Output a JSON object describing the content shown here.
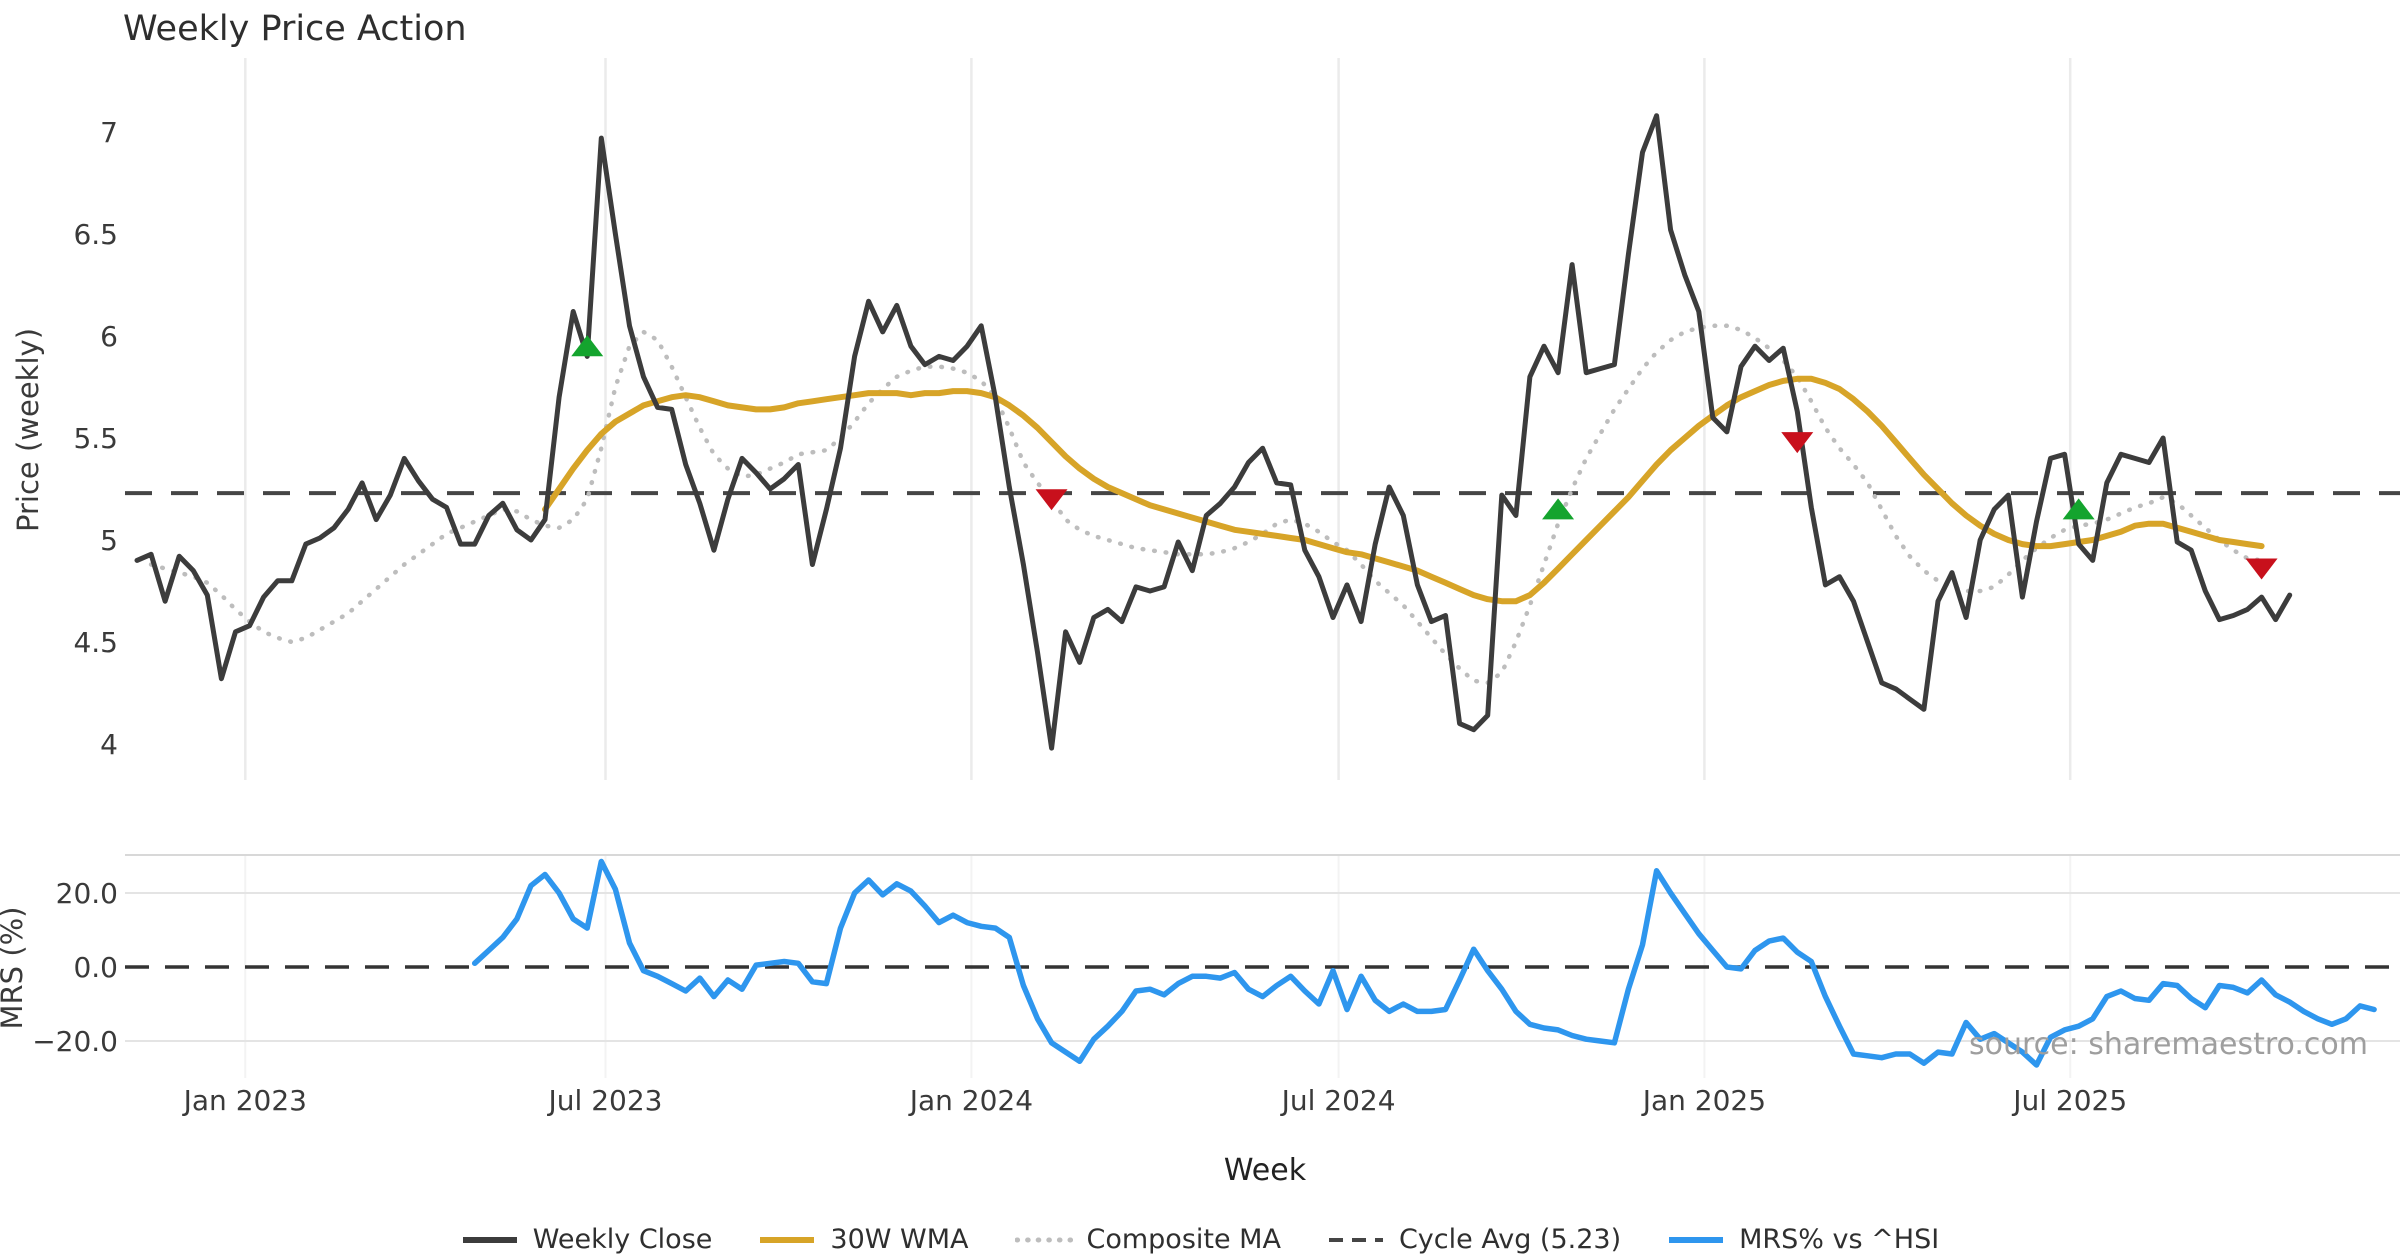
{
  "title": "Weekly Price Action",
  "source_note": "source: sharemaestro.com",
  "colors": {
    "close": "#3c3c3c",
    "wma": "#d7a428",
    "composite": "#bdbdbd",
    "cycle_avg": "#454545",
    "mrs": "#2e96ee",
    "buy_marker": "#14a42e",
    "sell_marker": "#c8101c",
    "grid": "#ebebeb",
    "panel_border": "#d8d8d8",
    "tick_text": "#3a3a3a",
    "source_text": "#9e9e9e"
  },
  "legend": [
    {
      "label": "Weekly Close",
      "color": "#3c3c3c",
      "style": "solid"
    },
    {
      "label": "30W WMA",
      "color": "#d7a428",
      "style": "solid"
    },
    {
      "label": "Composite MA",
      "color": "#bdbdbd",
      "style": "dotted"
    },
    {
      "label": "Cycle Avg (5.23)",
      "color": "#454545",
      "style": "dashed"
    },
    {
      "label": "MRS% vs ^HSI",
      "color": "#2e96ee",
      "style": "solid"
    }
  ],
  "chart_data": {
    "type": "line",
    "x_unit": "week",
    "xlabel": "Week",
    "xticks": [
      {
        "label": "Jan 2023",
        "week": 7.7
      },
      {
        "label": "Jul 2023",
        "week": 33.3
      },
      {
        "label": "Jan 2024",
        "week": 59.3
      },
      {
        "label": "Jul 2024",
        "week": 85.4
      },
      {
        "label": "Jan 2025",
        "week": 111.4
      },
      {
        "label": "Jul 2025",
        "week": 137.4
      }
    ],
    "price_panel": {
      "ylabel": "Price (weekly)",
      "yticks": [
        7,
        6.5,
        6,
        5.5,
        5,
        4.5,
        4
      ],
      "ylim": [
        3.85,
        7.15
      ],
      "cycle_avg": 5.23,
      "series": [
        {
          "name": "Weekly Close",
          "start_week": 0,
          "values": [
            4.9,
            4.93,
            4.7,
            4.92,
            4.85,
            4.73,
            4.32,
            4.55,
            4.58,
            4.72,
            4.8,
            4.8,
            4.98,
            5.01,
            5.06,
            5.15,
            5.28,
            5.1,
            5.22,
            5.4,
            5.29,
            5.2,
            5.16,
            4.98,
            4.98,
            5.12,
            5.18,
            5.05,
            5.0,
            5.1,
            5.7,
            6.12,
            5.9,
            6.97,
            6.5,
            6.05,
            5.8,
            5.65,
            5.64,
            5.37,
            5.18,
            4.95,
            5.2,
            5.4,
            5.33,
            5.25,
            5.3,
            5.37,
            4.88,
            5.15,
            5.45,
            5.9,
            6.17,
            6.02,
            6.15,
            5.95,
            5.86,
            5.9,
            5.88,
            5.95,
            6.05,
            5.7,
            5.26,
            4.88,
            4.45,
            3.98,
            4.55,
            4.4,
            4.62,
            4.66,
            4.6,
            4.77,
            4.75,
            4.77,
            4.99,
            4.85,
            5.12,
            5.18,
            5.26,
            5.38,
            5.45,
            5.28,
            5.27,
            4.95,
            4.82,
            4.62,
            4.78,
            4.6,
            4.98,
            5.26,
            5.12,
            4.78,
            4.6,
            4.63,
            4.1,
            4.07,
            4.14,
            5.22,
            5.12,
            5.8,
            5.95,
            5.82,
            6.35,
            5.82,
            5.84,
            5.86,
            6.4,
            6.9,
            7.08,
            6.52,
            6.3,
            6.12,
            5.6,
            5.53,
            5.85,
            5.95,
            5.88,
            5.94,
            5.63,
            5.16,
            4.78,
            4.82,
            4.7,
            4.5,
            4.3,
            4.27,
            4.22,
            4.17,
            4.7,
            4.84,
            4.62,
            5.0,
            5.15,
            5.22,
            4.72,
            5.09,
            5.4,
            5.42,
            4.98,
            4.9,
            5.28,
            5.42,
            5.4,
            5.38,
            5.5,
            4.99,
            4.95,
            4.75,
            4.61,
            4.63,
            4.66,
            4.72,
            4.61,
            4.73
          ]
        },
        {
          "name": "30W WMA",
          "start_week": 29,
          "values": [
            5.15,
            5.25,
            5.35,
            5.44,
            5.52,
            5.58,
            5.62,
            5.66,
            5.68,
            5.7,
            5.71,
            5.7,
            5.68,
            5.66,
            5.65,
            5.64,
            5.64,
            5.65,
            5.67,
            5.68,
            5.69,
            5.7,
            5.71,
            5.72,
            5.72,
            5.72,
            5.71,
            5.72,
            5.72,
            5.73,
            5.73,
            5.72,
            5.7,
            5.66,
            5.61,
            5.55,
            5.48,
            5.41,
            5.35,
            5.3,
            5.26,
            5.23,
            5.2,
            5.17,
            5.15,
            5.13,
            5.11,
            5.09,
            5.07,
            5.05,
            5.04,
            5.03,
            5.02,
            5.01,
            5.0,
            4.98,
            4.96,
            4.94,
            4.93,
            4.91,
            4.89,
            4.87,
            4.85,
            4.82,
            4.79,
            4.76,
            4.73,
            4.71,
            4.7,
            4.7,
            4.73,
            4.79,
            4.86,
            4.93,
            5.0,
            5.07,
            5.14,
            5.21,
            5.29,
            5.37,
            5.44,
            5.5,
            5.56,
            5.61,
            5.66,
            5.7,
            5.73,
            5.76,
            5.78,
            5.79,
            5.79,
            5.77,
            5.74,
            5.69,
            5.63,
            5.56,
            5.48,
            5.4,
            5.32,
            5.25,
            5.18,
            5.12,
            5.07,
            5.03,
            5.0,
            4.98,
            4.97,
            4.97,
            4.98,
            4.99,
            5.0,
            5.02,
            5.04,
            5.07,
            5.08,
            5.08,
            5.06,
            5.04,
            5.02,
            5.0,
            4.99,
            4.98,
            4.97
          ]
        },
        {
          "name": "Composite MA",
          "start_week": 1,
          "values": [
            4.88,
            4.86,
            4.84,
            4.82,
            4.79,
            4.73,
            4.66,
            4.6,
            4.55,
            4.52,
            4.5,
            4.52,
            4.56,
            4.6,
            4.64,
            4.7,
            4.76,
            4.82,
            4.88,
            4.93,
            4.98,
            5.03,
            5.06,
            5.09,
            5.12,
            5.15,
            5.14,
            5.1,
            5.07,
            5.06,
            5.1,
            5.2,
            5.45,
            5.75,
            5.95,
            6.02,
            5.98,
            5.85,
            5.7,
            5.55,
            5.42,
            5.35,
            5.31,
            5.32,
            5.35,
            5.38,
            5.42,
            5.43,
            5.44,
            5.5,
            5.58,
            5.67,
            5.74,
            5.8,
            5.83,
            5.85,
            5.85,
            5.84,
            5.82,
            5.78,
            5.7,
            5.55,
            5.38,
            5.28,
            5.2,
            5.1,
            5.05,
            5.02,
            5.0,
            4.98,
            4.96,
            4.95,
            4.94,
            4.93,
            4.93,
            4.93,
            4.94,
            4.96,
            4.99,
            5.03,
            5.08,
            5.1,
            5.08,
            5.04,
            4.99,
            4.95,
            4.88,
            4.8,
            4.74,
            4.68,
            4.6,
            4.52,
            4.44,
            4.37,
            4.31,
            4.3,
            4.35,
            4.5,
            4.68,
            4.88,
            5.08,
            5.25,
            5.4,
            5.52,
            5.64,
            5.74,
            5.84,
            5.92,
            5.98,
            6.02,
            6.04,
            6.05,
            6.05,
            6.03,
            5.99,
            5.94,
            5.88,
            5.8,
            5.68,
            5.55,
            5.45,
            5.37,
            5.28,
            5.15,
            5.02,
            4.92,
            4.85,
            4.8,
            4.77,
            4.75,
            4.75,
            4.77,
            4.83,
            4.9,
            4.96,
            5.01,
            5.05,
            5.07,
            5.08,
            5.1,
            5.13,
            5.16,
            5.18,
            5.21,
            5.18,
            5.12,
            5.06,
            5.0,
            4.95,
            4.91,
            4.9
          ]
        }
      ],
      "signals": {
        "buy": [
          {
            "week": 32,
            "price": 5.95
          },
          {
            "week": 101,
            "price": 5.15
          },
          {
            "week": 138,
            "price": 5.15
          }
        ],
        "sell": [
          {
            "week": 65,
            "price": 5.2
          },
          {
            "week": 118,
            "price": 5.48
          },
          {
            "week": 151,
            "price": 4.86
          }
        ]
      }
    },
    "mrs_panel": {
      "ylabel": "MRS (%)",
      "ytick_labels": [
        "20.0",
        "0.0",
        "−20.0"
      ],
      "ytick_values": [
        20,
        0,
        -20
      ],
      "zero_line": 0,
      "ylim": [
        -32,
        30
      ],
      "series": [
        {
          "name": "MRS% vs ^HSI",
          "start_week": 24,
          "values": [
            1.0,
            4.5,
            8.0,
            13.0,
            22.0,
            25.0,
            20.0,
            13.0,
            10.5,
            28.5,
            21.0,
            6.5,
            -1.0,
            -2.5,
            -4.5,
            -6.5,
            -3.0,
            -8.0,
            -3.5,
            -6.0,
            0.5,
            1.0,
            1.5,
            1.0,
            -4.0,
            -4.5,
            10.5,
            20.0,
            23.5,
            19.5,
            22.5,
            20.5,
            16.5,
            12.0,
            14.0,
            12.0,
            11.0,
            10.5,
            8.0,
            -5.0,
            -14.0,
            -20.5,
            -23.0,
            -25.5,
            -19.5,
            -16.0,
            -12.0,
            -6.5,
            -6.0,
            -7.5,
            -4.5,
            -2.5,
            -2.5,
            -3.0,
            -1.5,
            -6.0,
            -8.0,
            -5.0,
            -2.5,
            -6.5,
            -10.0,
            -1.0,
            -11.5,
            -2.5,
            -9.0,
            -12.0,
            -10.0,
            -12.0,
            -12.0,
            -11.5,
            -3.5,
            4.8,
            -1.0,
            -6.0,
            -12.0,
            -15.5,
            -16.5,
            -17.0,
            -18.5,
            -19.5,
            -20.0,
            -20.5,
            -6.0,
            6.0,
            26.0,
            20.0,
            14.5,
            9.0,
            4.5,
            0.0,
            -0.5,
            4.5,
            7.0,
            7.8,
            4.0,
            1.5,
            -8.0,
            -16.0,
            -23.5,
            -24.0,
            -24.5,
            -23.5,
            -23.5,
            -26.0,
            -23.0,
            -23.5,
            -15.0,
            -19.5,
            -18.0,
            -20.5,
            -23.0,
            -26.5,
            -19.0,
            -17.0,
            -16.0,
            -14.0,
            -8.0,
            -6.5,
            -8.5,
            -9.0,
            -4.5,
            -5.0,
            -8.5,
            -11.0,
            -5.0,
            -5.5,
            -7.0,
            -3.5,
            -7.5,
            -9.5,
            -12.0,
            -14.0,
            -15.5,
            -14.0,
            -10.5,
            -11.5
          ]
        }
      ]
    }
  }
}
